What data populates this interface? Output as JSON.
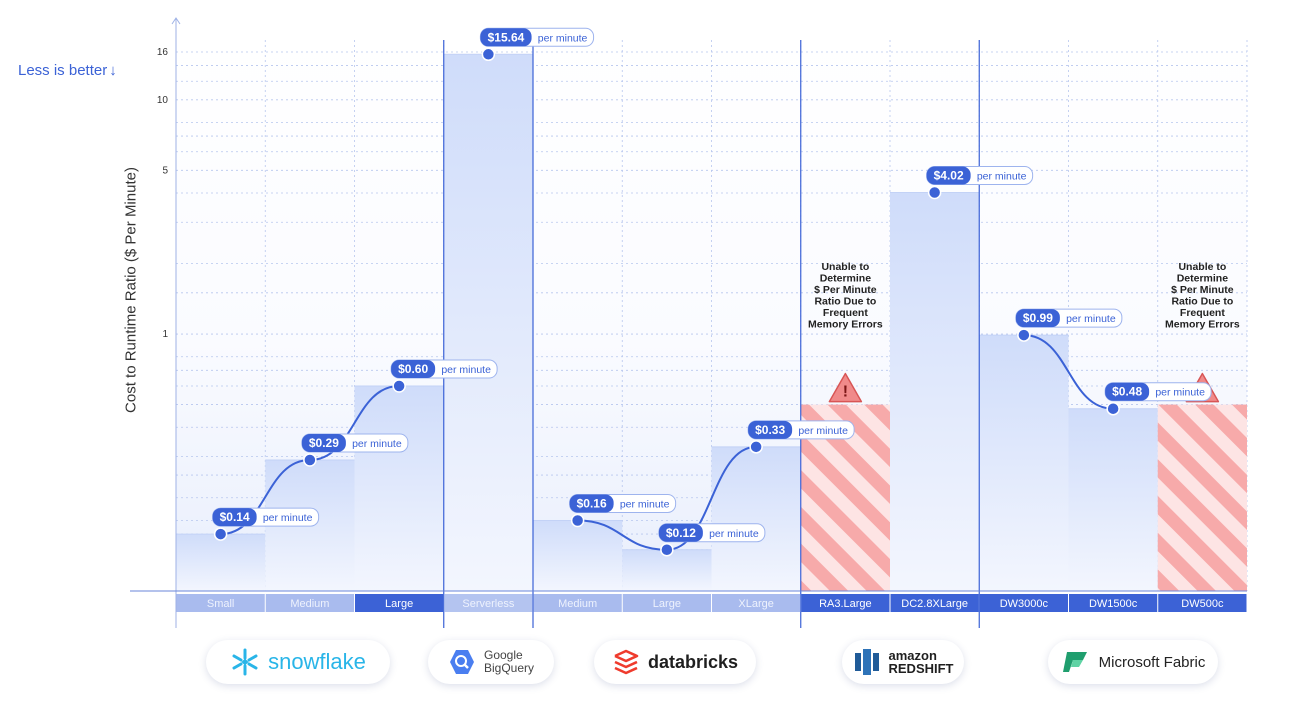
{
  "chart_data": {
    "type": "bar",
    "subtitle": "Less is better",
    "ylabel": "Cost to Runtime Ratio ($ Per Minute)",
    "yscale": "log",
    "ylim": [
      0.08,
      18
    ],
    "yticks": [
      1,
      5,
      10,
      16
    ],
    "grid": true,
    "categories": [
      "Small",
      "Medium",
      "Large",
      "Serverless",
      "Medium",
      "Large",
      "XLarge",
      "RA3.Large",
      "DC2.8XLarge",
      "DW3000c",
      "DW1500c",
      "DW500c"
    ],
    "values": [
      0.14,
      0.29,
      0.6,
      15.64,
      0.16,
      0.12,
      0.33,
      null,
      4.02,
      0.99,
      0.48,
      null
    ],
    "value_labels": [
      "$0.14",
      "$0.29",
      "$0.60",
      "$15.64",
      "$0.16",
      "$0.12",
      "$0.33",
      "",
      "$4.02",
      "$0.99",
      "$0.48",
      ""
    ],
    "unit_label": "per minute",
    "vendor_spans": [
      [
        0,
        2
      ],
      [
        3,
        3
      ],
      [
        4,
        6
      ],
      [
        7,
        8
      ],
      [
        9,
        11
      ]
    ],
    "error_note": "Unable to Determine $ Per Minute Ratio Due to Frequent Memory Errors",
    "colors": {
      "accent": "#3b62d6",
      "bar": "#dbe4fb",
      "error": "#f2a0a0",
      "grid": "#b7c6ee"
    }
  },
  "vendors": [
    {
      "name": "snowflake",
      "icon": "snowflake-icon"
    },
    {
      "name": "Google\nBigQuery",
      "icon": "bigquery-icon"
    },
    {
      "name": "databricks",
      "icon": "databricks-icon"
    },
    {
      "name": "amazon\nREDSHIFT",
      "icon": "redshift-icon"
    },
    {
      "name": "Microsoft Fabric",
      "icon": "fabric-icon"
    }
  ]
}
